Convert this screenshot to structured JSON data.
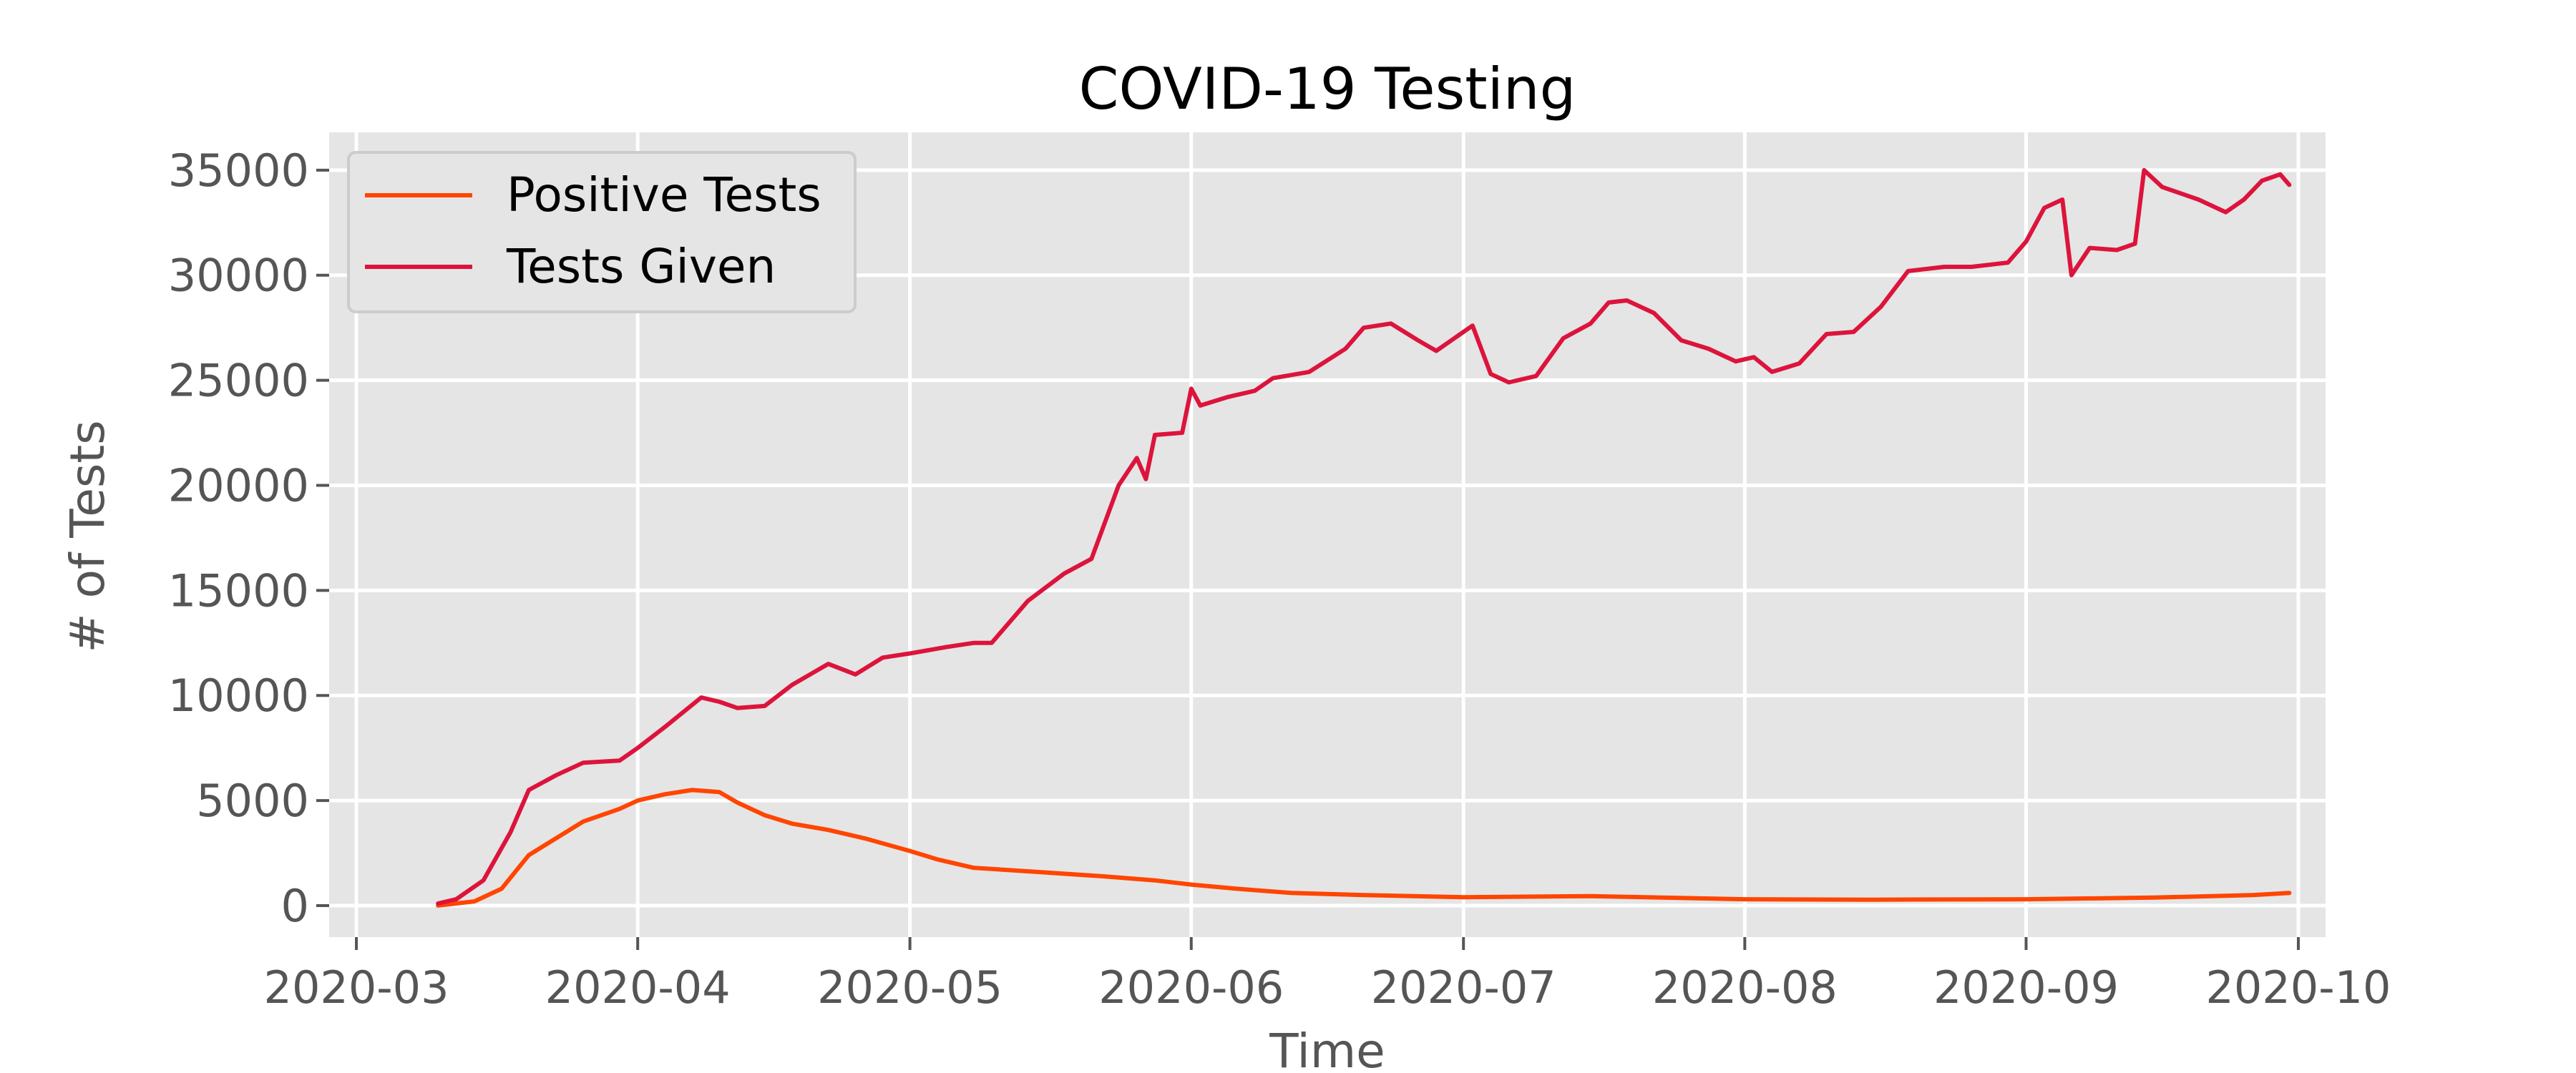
{
  "chart_data": {
    "type": "line",
    "title": "COVID-19 Testing",
    "xlabel": "Time",
    "ylabel": "# of Tests",
    "x_range": [
      "2020-02-27",
      "2020-10-04"
    ],
    "ylim": [
      -1500,
      36800
    ],
    "x_ticks": [
      "2020-03",
      "2020-04",
      "2020-05",
      "2020-06",
      "2020-07",
      "2020-08",
      "2020-09",
      "2020-10"
    ],
    "x_tick_dates": [
      "2020-03-01",
      "2020-04-01",
      "2020-05-01",
      "2020-06-01",
      "2020-07-01",
      "2020-08-01",
      "2020-09-01",
      "2020-10-01"
    ],
    "y_ticks": [
      0,
      5000,
      10000,
      15000,
      20000,
      25000,
      30000,
      35000
    ],
    "y_tick_labels": [
      "0",
      "5000",
      "10000",
      "15000",
      "20000",
      "25000",
      "30000",
      "35000"
    ],
    "grid": true,
    "legend_position": "top-left",
    "series": [
      {
        "name": "Positive Tests",
        "color": "#FF4500",
        "points": [
          [
            "2020-03-10",
            0
          ],
          [
            "2020-03-14",
            200
          ],
          [
            "2020-03-17",
            800
          ],
          [
            "2020-03-20",
            2400
          ],
          [
            "2020-03-23",
            3200
          ],
          [
            "2020-03-26",
            4000
          ],
          [
            "2020-03-30",
            4600
          ],
          [
            "2020-04-01",
            5000
          ],
          [
            "2020-04-04",
            5300
          ],
          [
            "2020-04-07",
            5500
          ],
          [
            "2020-04-10",
            5400
          ],
          [
            "2020-04-12",
            4900
          ],
          [
            "2020-04-15",
            4300
          ],
          [
            "2020-04-18",
            3900
          ],
          [
            "2020-04-22",
            3600
          ],
          [
            "2020-04-26",
            3200
          ],
          [
            "2020-05-01",
            2600
          ],
          [
            "2020-05-04",
            2200
          ],
          [
            "2020-05-08",
            1800
          ],
          [
            "2020-05-15",
            1600
          ],
          [
            "2020-05-22",
            1400
          ],
          [
            "2020-05-28",
            1200
          ],
          [
            "2020-06-01",
            1000
          ],
          [
            "2020-06-06",
            800
          ],
          [
            "2020-06-12",
            600
          ],
          [
            "2020-06-20",
            500
          ],
          [
            "2020-07-01",
            400
          ],
          [
            "2020-07-15",
            450
          ],
          [
            "2020-08-01",
            300
          ],
          [
            "2020-08-15",
            280
          ],
          [
            "2020-09-01",
            300
          ],
          [
            "2020-09-15",
            380
          ],
          [
            "2020-09-26",
            500
          ],
          [
            "2020-09-30",
            600
          ]
        ]
      },
      {
        "name": "Tests Given",
        "color": "#DC143C",
        "points": [
          [
            "2020-03-10",
            100
          ],
          [
            "2020-03-12",
            300
          ],
          [
            "2020-03-15",
            1200
          ],
          [
            "2020-03-18",
            3500
          ],
          [
            "2020-03-20",
            5500
          ],
          [
            "2020-03-23",
            6200
          ],
          [
            "2020-03-26",
            6800
          ],
          [
            "2020-03-30",
            6900
          ],
          [
            "2020-04-01",
            7500
          ],
          [
            "2020-04-04",
            8500
          ],
          [
            "2020-04-08",
            9900
          ],
          [
            "2020-04-10",
            9700
          ],
          [
            "2020-04-12",
            9400
          ],
          [
            "2020-04-15",
            9500
          ],
          [
            "2020-04-18",
            10500
          ],
          [
            "2020-04-22",
            11500
          ],
          [
            "2020-04-25",
            11000
          ],
          [
            "2020-04-28",
            11800
          ],
          [
            "2020-05-01",
            12000
          ],
          [
            "2020-05-05",
            12300
          ],
          [
            "2020-05-08",
            12500
          ],
          [
            "2020-05-10",
            12500
          ],
          [
            "2020-05-14",
            14500
          ],
          [
            "2020-05-18",
            15800
          ],
          [
            "2020-05-21",
            16500
          ],
          [
            "2020-05-24",
            20000
          ],
          [
            "2020-05-26",
            21300
          ],
          [
            "2020-05-27",
            20300
          ],
          [
            "2020-05-28",
            22400
          ],
          [
            "2020-05-31",
            22500
          ],
          [
            "2020-06-01",
            24600
          ],
          [
            "2020-06-02",
            23800
          ],
          [
            "2020-06-05",
            24200
          ],
          [
            "2020-06-08",
            24500
          ],
          [
            "2020-06-10",
            25100
          ],
          [
            "2020-06-14",
            25400
          ],
          [
            "2020-06-18",
            26500
          ],
          [
            "2020-06-20",
            27500
          ],
          [
            "2020-06-23",
            27700
          ],
          [
            "2020-06-26",
            26900
          ],
          [
            "2020-06-28",
            26400
          ],
          [
            "2020-07-01",
            27300
          ],
          [
            "2020-07-02",
            27600
          ],
          [
            "2020-07-04",
            25300
          ],
          [
            "2020-07-06",
            24900
          ],
          [
            "2020-07-09",
            25200
          ],
          [
            "2020-07-12",
            27000
          ],
          [
            "2020-07-15",
            27700
          ],
          [
            "2020-07-17",
            28700
          ],
          [
            "2020-07-19",
            28800
          ],
          [
            "2020-07-22",
            28200
          ],
          [
            "2020-07-25",
            26900
          ],
          [
            "2020-07-28",
            26500
          ],
          [
            "2020-07-31",
            25900
          ],
          [
            "2020-08-02",
            26100
          ],
          [
            "2020-08-04",
            25400
          ],
          [
            "2020-08-07",
            25800
          ],
          [
            "2020-08-10",
            27200
          ],
          [
            "2020-08-13",
            27300
          ],
          [
            "2020-08-16",
            28500
          ],
          [
            "2020-08-19",
            30200
          ],
          [
            "2020-08-23",
            30400
          ],
          [
            "2020-08-26",
            30400
          ],
          [
            "2020-08-30",
            30600
          ],
          [
            "2020-09-01",
            31600
          ],
          [
            "2020-09-03",
            33200
          ],
          [
            "2020-09-05",
            33600
          ],
          [
            "2020-09-06",
            30000
          ],
          [
            "2020-09-08",
            31300
          ],
          [
            "2020-09-11",
            31200
          ],
          [
            "2020-09-13",
            31500
          ],
          [
            "2020-09-14",
            35000
          ],
          [
            "2020-09-16",
            34200
          ],
          [
            "2020-09-20",
            33600
          ],
          [
            "2020-09-23",
            33000
          ],
          [
            "2020-09-25",
            33600
          ],
          [
            "2020-09-27",
            34500
          ],
          [
            "2020-09-29",
            34800
          ],
          [
            "2020-09-30",
            34300
          ]
        ]
      }
    ]
  }
}
